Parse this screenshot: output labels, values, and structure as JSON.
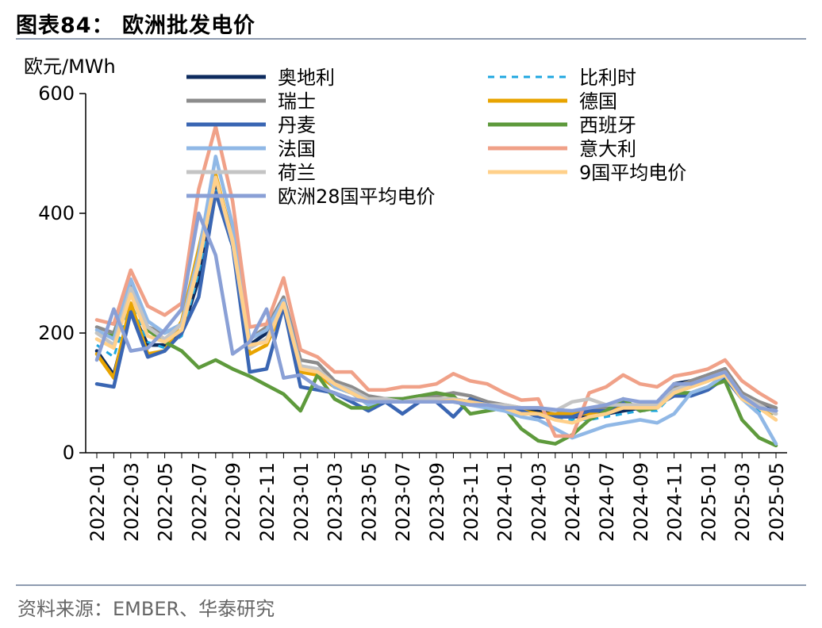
{
  "title": "图表84：  欧洲批发电价",
  "source": "资料来源：EMBER、华泰研究",
  "chart_data": {
    "type": "line",
    "ylabel": "欧元/MWh",
    "ylim": [
      0,
      600
    ],
    "yticks": [
      0,
      200,
      400,
      600
    ],
    "x": [
      "2022-01",
      "2022-02",
      "2022-03",
      "2022-04",
      "2022-05",
      "2022-06",
      "2022-07",
      "2022-08",
      "2022-09",
      "2022-10",
      "2022-11",
      "2022-12",
      "2023-01",
      "2023-02",
      "2023-03",
      "2023-04",
      "2023-05",
      "2023-06",
      "2023-07",
      "2023-08",
      "2023-09",
      "2023-10",
      "2023-11",
      "2023-12",
      "2024-01",
      "2024-02",
      "2024-03",
      "2024-04",
      "2024-05",
      "2024-06",
      "2024-07",
      "2024-08",
      "2024-09",
      "2024-10",
      "2024-11",
      "2024-12",
      "2025-01",
      "2025-02",
      "2025-03",
      "2025-04",
      "2025-05"
    ],
    "xtick_labels": [
      "2022-01",
      "2022-03",
      "2022-05",
      "2022-07",
      "2022-09",
      "2022-11",
      "2023-01",
      "2023-03",
      "2023-05",
      "2023-07",
      "2023-09",
      "2023-11",
      "2024-01",
      "2024-03",
      "2024-05",
      "2024-07",
      "2024-09",
      "2024-11",
      "2025-01",
      "2025-03",
      "2025-05"
    ],
    "legend_placement": "top",
    "series": [
      {
        "name": "奥地利",
        "color": "#0d2b5e",
        "dash": "",
        "values": [
          170,
          130,
          240,
          180,
          180,
          200,
          290,
          450,
          350,
          180,
          200,
          250,
          140,
          140,
          110,
          100,
          90,
          90,
          90,
          90,
          90,
          90,
          85,
          80,
          75,
          70,
          70,
          65,
          60,
          62,
          65,
          70,
          75,
          80,
          115,
          120,
          130,
          140,
          100,
          80,
          70
        ]
      },
      {
        "name": "比利时",
        "color": "#1fa7e0",
        "dash": "8,7",
        "values": [
          180,
          160,
          250,
          185,
          175,
          195,
          300,
          440,
          340,
          175,
          190,
          245,
          145,
          135,
          110,
          100,
          90,
          85,
          85,
          85,
          85,
          85,
          80,
          75,
          70,
          65,
          65,
          60,
          55,
          55,
          60,
          65,
          70,
          70,
          100,
          110,
          120,
          130,
          90,
          70,
          60
        ]
      },
      {
        "name": "瑞士",
        "color": "#8c8c8c",
        "dash": "",
        "values": [
          210,
          200,
          280,
          210,
          200,
          215,
          320,
          460,
          360,
          190,
          210,
          260,
          155,
          150,
          120,
          110,
          95,
          90,
          90,
          95,
          95,
          100,
          95,
          85,
          80,
          75,
          75,
          70,
          70,
          70,
          75,
          80,
          80,
          85,
          110,
          120,
          130,
          140,
          100,
          85,
          75
        ]
      },
      {
        "name": "德国",
        "color": "#e8a400",
        "dash": "",
        "values": [
          165,
          125,
          250,
          165,
          170,
          220,
          340,
          465,
          355,
          165,
          180,
          245,
          135,
          130,
          110,
          100,
          85,
          85,
          85,
          85,
          90,
          90,
          85,
          75,
          75,
          70,
          65,
          65,
          65,
          65,
          70,
          75,
          75,
          80,
          100,
          110,
          120,
          135,
          95,
          75,
          65
        ]
      },
      {
        "name": "丹麦",
        "color": "#3a66b3",
        "dash": "",
        "values": [
          115,
          110,
          235,
          160,
          170,
          200,
          260,
          435,
          345,
          135,
          140,
          245,
          110,
          105,
          100,
          85,
          70,
          85,
          65,
          85,
          85,
          60,
          90,
          80,
          75,
          70,
          60,
          60,
          60,
          70,
          70,
          85,
          70,
          80,
          95,
          95,
          105,
          125,
          90,
          75,
          70
        ]
      },
      {
        "name": "西班牙",
        "color": "#5e9a3c",
        "dash": "",
        "values": [
          200,
          195,
          270,
          205,
          185,
          170,
          142,
          155,
          140,
          128,
          113,
          98,
          70,
          130,
          90,
          75,
          75,
          90,
          90,
          95,
          100,
          95,
          65,
          70,
          75,
          40,
          20,
          15,
          30,
          55,
          70,
          90,
          70,
          75,
          100,
          100,
          110,
          120,
          55,
          25,
          12
        ]
      },
      {
        "name": "法国",
        "color": "#90b8e6",
        "dash": "",
        "values": [
          205,
          190,
          290,
          220,
          200,
          215,
          330,
          495,
          380,
          190,
          205,
          255,
          145,
          140,
          110,
          100,
          80,
          90,
          85,
          85,
          85,
          85,
          80,
          75,
          70,
          60,
          55,
          40,
          25,
          35,
          45,
          50,
          55,
          50,
          65,
          100,
          110,
          130,
          90,
          65,
          15
        ]
      },
      {
        "name": "意大利",
        "color": "#f0a188",
        "dash": "",
        "values": [
          222,
          215,
          305,
          245,
          230,
          250,
          440,
          545,
          420,
          210,
          215,
          292,
          172,
          160,
          135,
          135,
          105,
          105,
          110,
          110,
          115,
          132,
          120,
          115,
          100,
          88,
          90,
          28,
          28,
          100,
          110,
          130,
          115,
          110,
          128,
          133,
          140,
          155,
          120,
          100,
          83
        ]
      },
      {
        "name": "荷兰",
        "color": "#c4c4c4",
        "dash": "",
        "values": [
          200,
          180,
          275,
          210,
          190,
          215,
          320,
          460,
          350,
          175,
          190,
          250,
          145,
          140,
          115,
          105,
          90,
          90,
          85,
          90,
          90,
          90,
          85,
          80,
          80,
          75,
          75,
          70,
          85,
          90,
          80,
          80,
          80,
          80,
          105,
          115,
          125,
          135,
          95,
          80,
          65
        ]
      },
      {
        "name": "9国平均电价",
        "color": "#ffd08a",
        "dash": "",
        "values": [
          190,
          175,
          265,
          195,
          185,
          205,
          315,
          460,
          355,
          180,
          185,
          250,
          140,
          135,
          115,
          100,
          85,
          85,
          85,
          85,
          85,
          88,
          85,
          80,
          75,
          65,
          65,
          55,
          50,
          60,
          65,
          75,
          75,
          75,
          100,
          110,
          120,
          130,
          90,
          75,
          55
        ]
      },
      {
        "name": "欧洲28国平均电价",
        "color": "#8aa0d6",
        "dash": "",
        "values": [
          155,
          240,
          170,
          175,
          205,
          240,
          400,
          330,
          165,
          185,
          240,
          125,
          130,
          110,
          100,
          90,
          85,
          85,
          85,
          85,
          85,
          85,
          80,
          80,
          75,
          75,
          75,
          72,
          70,
          75,
          80,
          90,
          85,
          85,
          115,
          115,
          125,
          135,
          95,
          75,
          70
        ]
      }
    ]
  }
}
